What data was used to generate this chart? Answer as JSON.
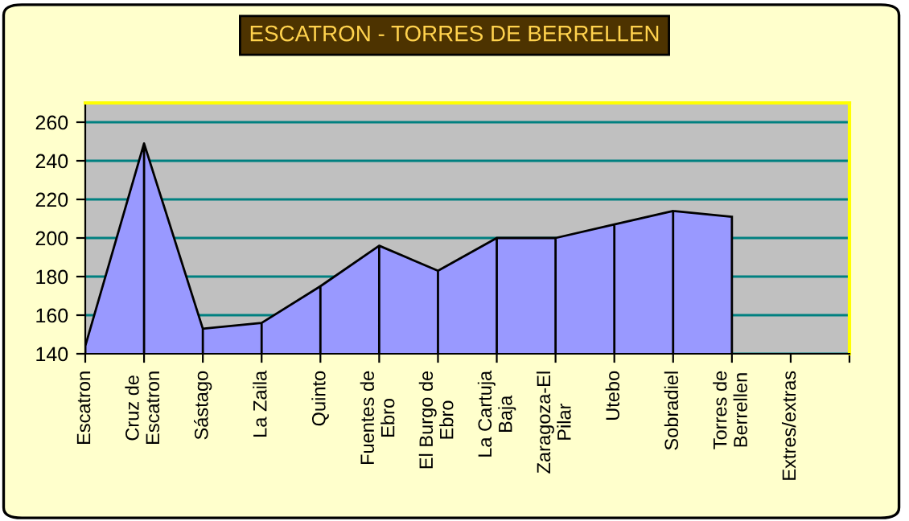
{
  "chart_data": {
    "type": "area",
    "title": "ESCATRON - TORRES DE BERRELLEN",
    "categories": [
      "Escatron",
      "Cruz de\nEscatron",
      "Sástago",
      "La Zaila",
      "Quinto",
      "Fuentes de\nEbro",
      "El Burgo de\nEbro",
      "La Cartuja\nBaja",
      "Zaragoza-El\nPilar",
      "Utebo",
      "Sobradiel",
      "Torres de\nBerrellen",
      "Extres/extras",
      null
    ],
    "series": [
      {
        "color": "#9999ff",
        "values": [
          144,
          249,
          153,
          156,
          175,
          196,
          183,
          200,
          200,
          207,
          214,
          211,
          null,
          null
        ]
      }
    ],
    "ylim": [
      140,
      270
    ],
    "yticks": [
      140,
      160,
      180,
      200,
      220,
      240,
      260
    ],
    "grid": "y"
  }
}
